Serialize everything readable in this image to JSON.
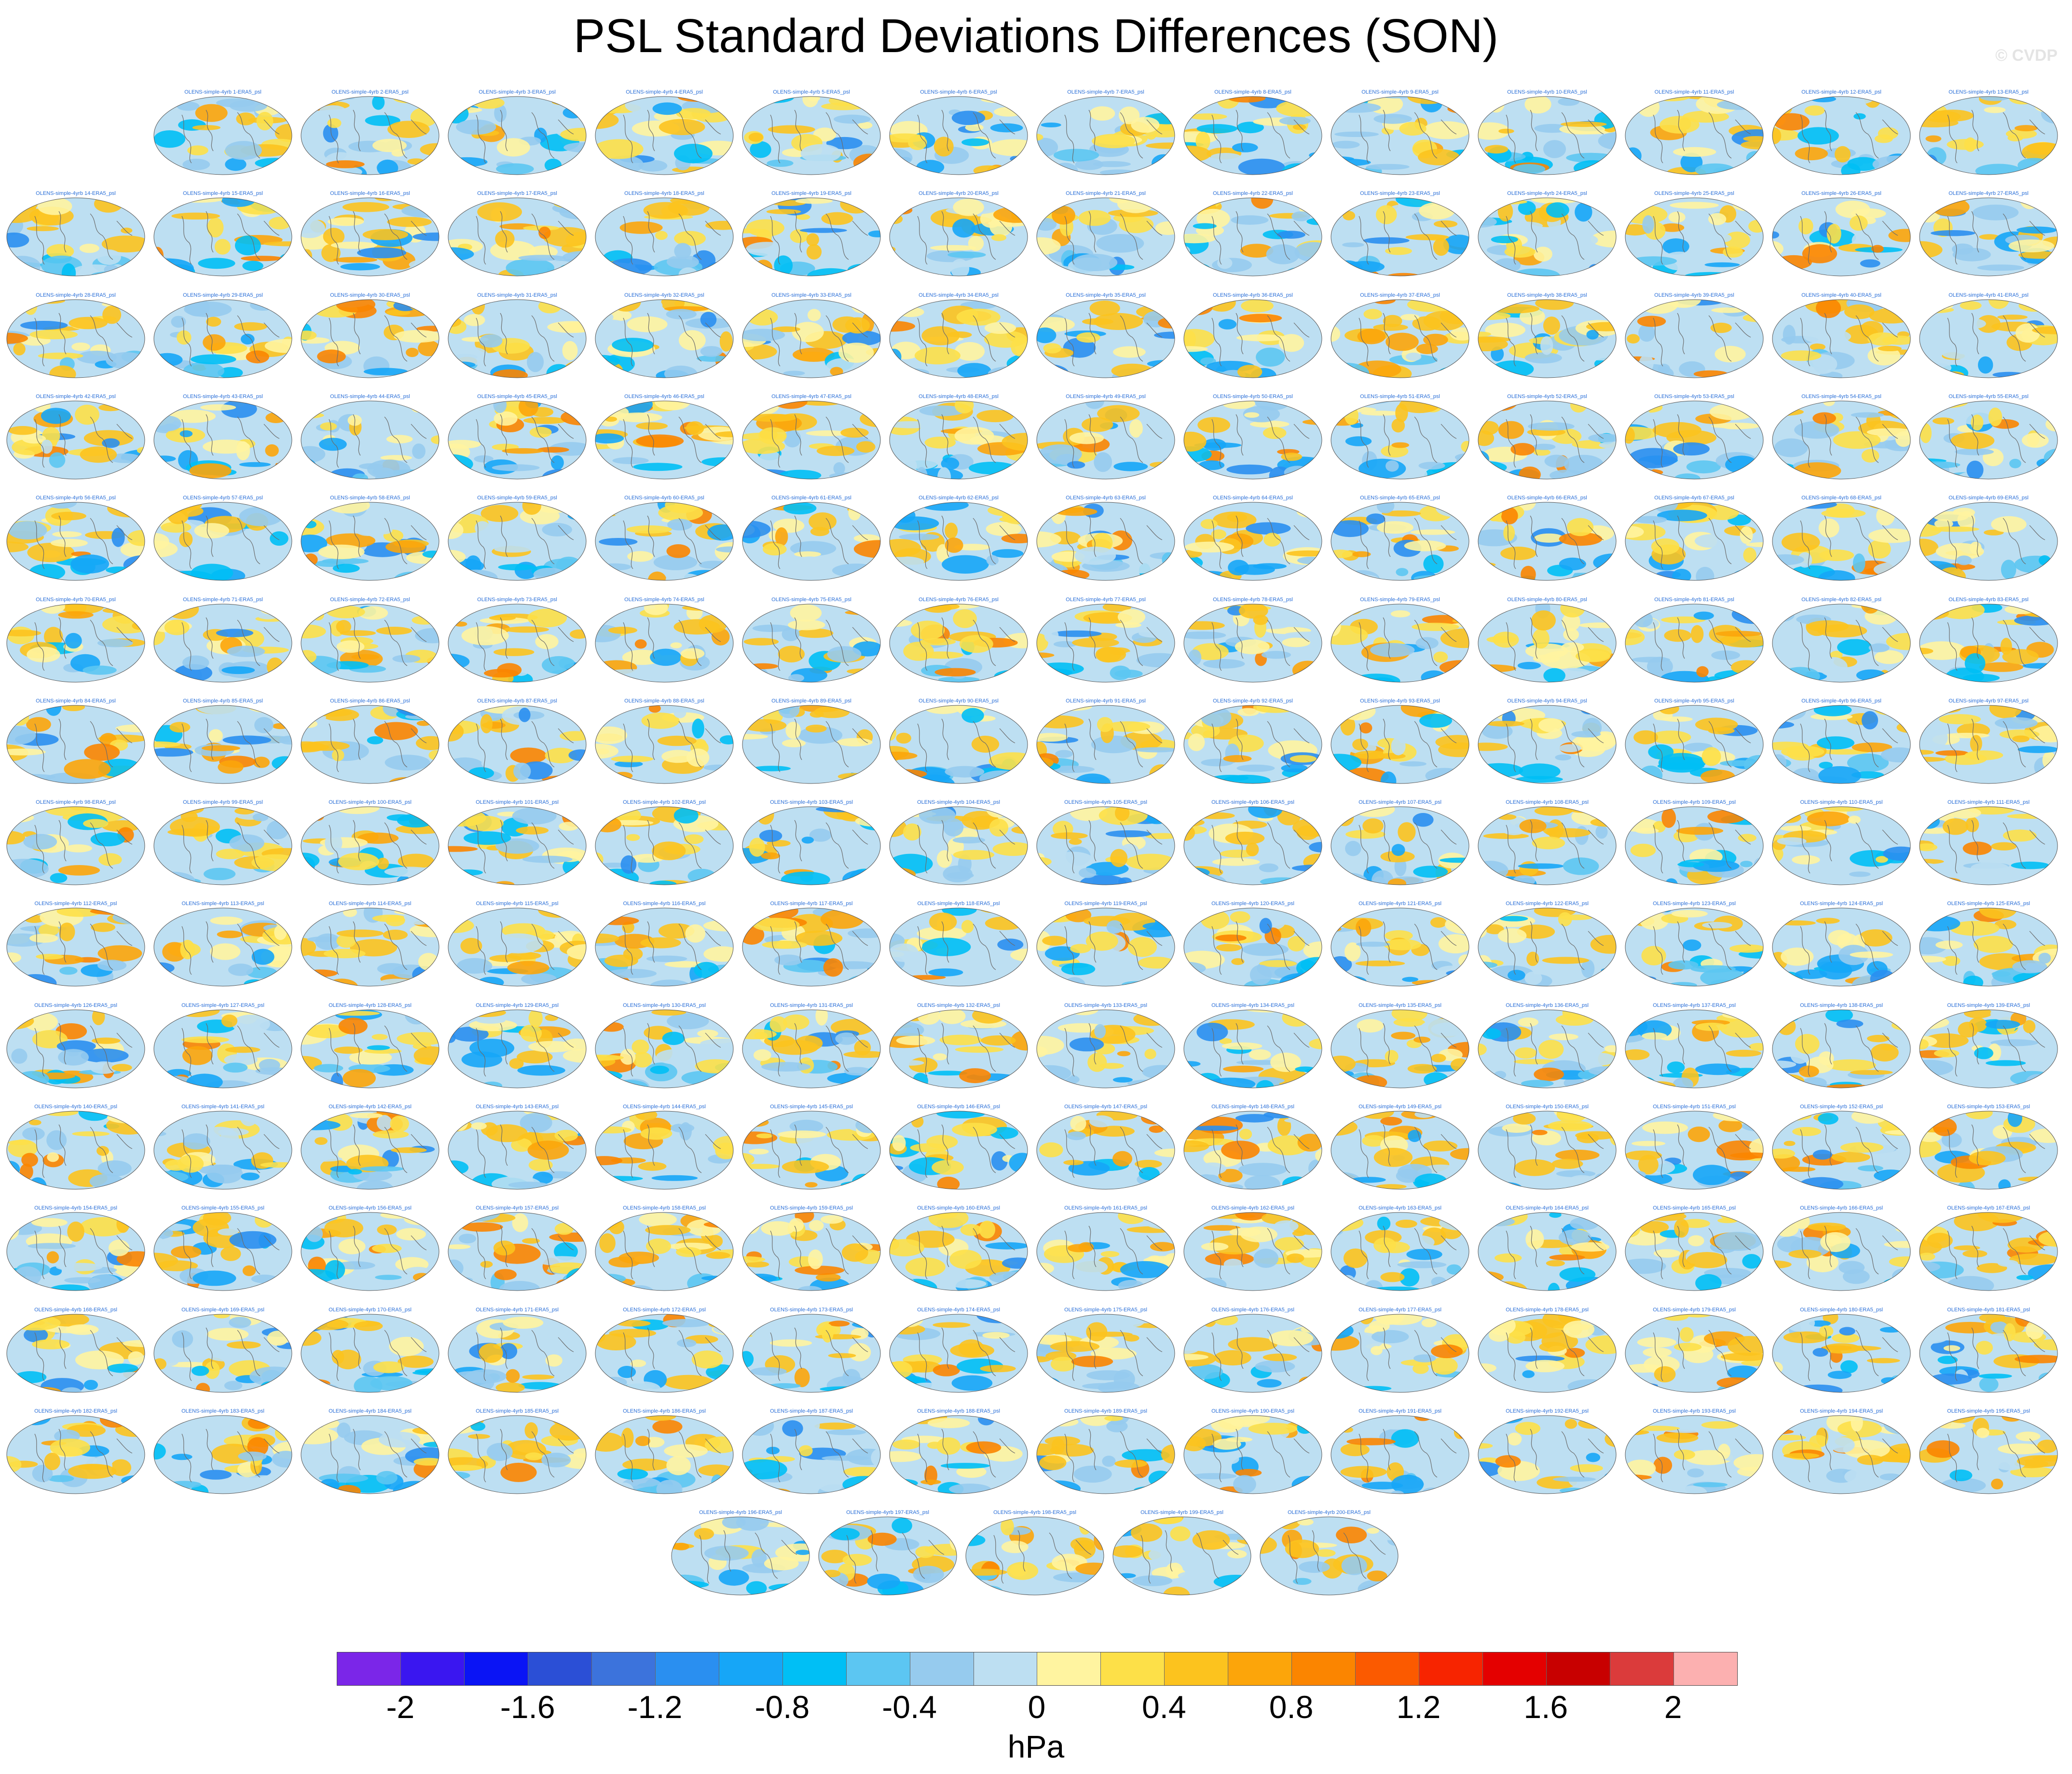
{
  "title": "PSL Standard Deviations Differences (SON)",
  "credit": "© CVDP",
  "panel_label_prefix": "OLENS-simple-4yrb",
  "panel_label_suffix": "-ERA5_psl",
  "panel_count": 200,
  "colormap": {
    "colors": [
      "#7b26e8",
      "#3a16f0",
      "#0a14f5",
      "#2b4fd6",
      "#3c73dc",
      "#2a8ff0",
      "#16a6f7",
      "#00bff5",
      "#5cc6f2",
      "#96cbee",
      "#bddff2",
      "#fff4a0",
      "#fde048",
      "#fcc31e",
      "#fca50a",
      "#fb8500",
      "#fb5a00",
      "#f72400",
      "#e40000",
      "#c80000",
      "#db3b3b",
      "#fcb0b0"
    ],
    "tick_labels": [
      "-2",
      "-1.6",
      "-1.2",
      "-0.8",
      "-0.4",
      "0",
      "0.4",
      "0.8",
      "1.2",
      "1.6",
      "2"
    ],
    "units": "hPa"
  },
  "chart_data": {
    "type": "heatmap",
    "title": "PSL Standard Deviations Differences (SON)",
    "variable": "PSL",
    "season": "SON",
    "units": "hPa",
    "projection": "global map panels",
    "panels": "OLENS-simple-4yrb members 1–200 minus ERA5_psl",
    "colorbar_range": [
      -2.2,
      2.2
    ],
    "colorbar_levels": [
      -2,
      -1.8,
      -1.6,
      -1.4,
      -1.2,
      -1,
      -0.8,
      -0.6,
      -0.4,
      -0.2,
      0,
      0.2,
      0.4,
      0.6,
      0.8,
      1,
      1.2,
      1.4,
      1.6,
      1.8,
      2
    ],
    "colorbar_ticks": [
      -2,
      -1.6,
      -1.2,
      -0.8,
      -0.4,
      0,
      0.4,
      0.8,
      1.2,
      1.6,
      2
    ]
  }
}
